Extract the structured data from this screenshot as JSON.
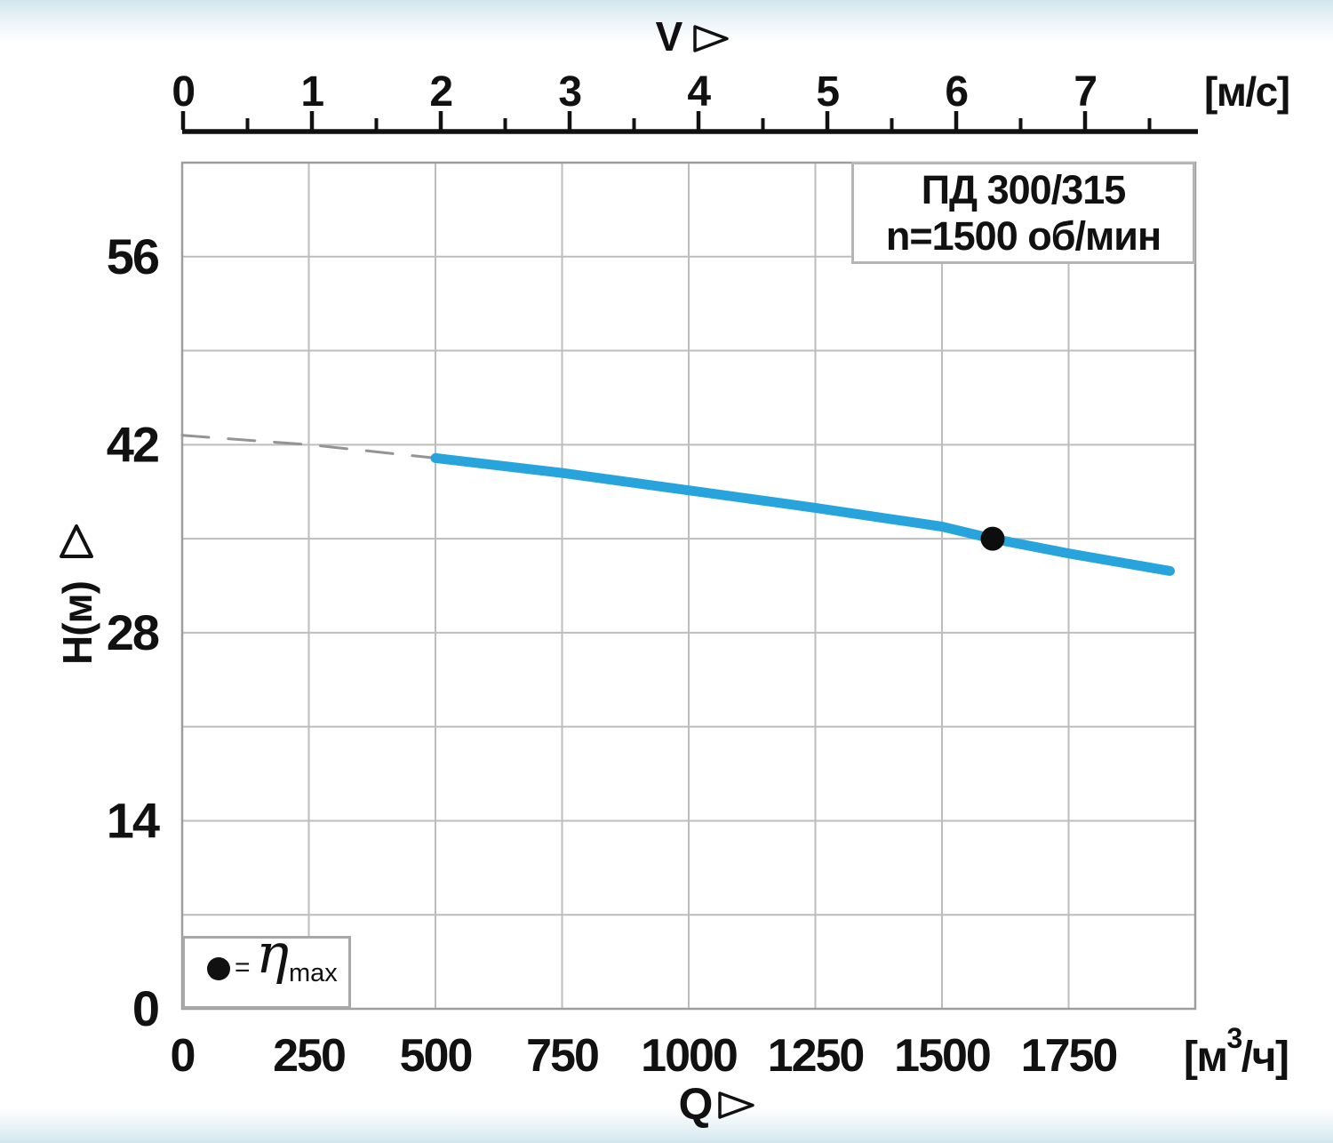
{
  "title_box": {
    "model": "ПД 300/315",
    "speed": "n=1500 об/мин"
  },
  "legend_box": {
    "equals": "=",
    "eta": "η",
    "subscript": "max"
  },
  "chart_data": {
    "type": "line",
    "title": "ПД 300/315",
    "subtitle": "n=1500 об/мин",
    "axes": {
      "bottom": {
        "name": "Q",
        "unit_prefix": "[м",
        "unit_sup": "3",
        "unit_suffix": "/ч]",
        "min": 0,
        "max": 2000,
        "grid_step": 250,
        "tick_labels": [
          "0",
          "250",
          "500",
          "750",
          "1000",
          "1250",
          "1500",
          "1750"
        ],
        "tick_values": [
          0,
          250,
          500,
          750,
          1000,
          1250,
          1500,
          1750
        ]
      },
      "top": {
        "name": "V",
        "unit": "[м/с]",
        "min": 0,
        "max": 7.9,
        "major_step": 1,
        "minor_step": 0.5,
        "tick_labels": [
          "0",
          "1",
          "2",
          "3",
          "4",
          "5",
          "6",
          "7"
        ],
        "tick_values": [
          0,
          1,
          2,
          3,
          4,
          5,
          6,
          7
        ]
      },
      "left": {
        "name": "H(м)",
        "min": 0,
        "max": 63,
        "grid_step": 7,
        "tick_labels": [
          "0",
          "14",
          "28",
          "42",
          "56"
        ],
        "tick_values": [
          0,
          14,
          28,
          42,
          56
        ]
      }
    },
    "grid": true,
    "grid_color": "#bdbdbd",
    "border_color": "#9e9e9e",
    "axis_color": "#111111",
    "series": [
      {
        "name": "hq-curve-extension",
        "style": "dashed",
        "color": "#949494",
        "points": [
          [
            0,
            42.7
          ],
          [
            250,
            42.0
          ],
          [
            500,
            41.0
          ]
        ]
      },
      {
        "name": "hq-curve",
        "style": "solid",
        "color": "#28a4dc",
        "points": [
          [
            500,
            41.0
          ],
          [
            750,
            39.9
          ],
          [
            1000,
            38.6
          ],
          [
            1250,
            37.3
          ],
          [
            1500,
            35.9
          ],
          [
            1600,
            35.0
          ],
          [
            1750,
            33.9
          ],
          [
            1950,
            32.6
          ]
        ]
      }
    ],
    "best_efficiency_point": {
      "q": 1600,
      "h": 35,
      "color": "#0d0d0d"
    },
    "legend": {
      "symbol": "dot",
      "text": "= η max"
    }
  }
}
